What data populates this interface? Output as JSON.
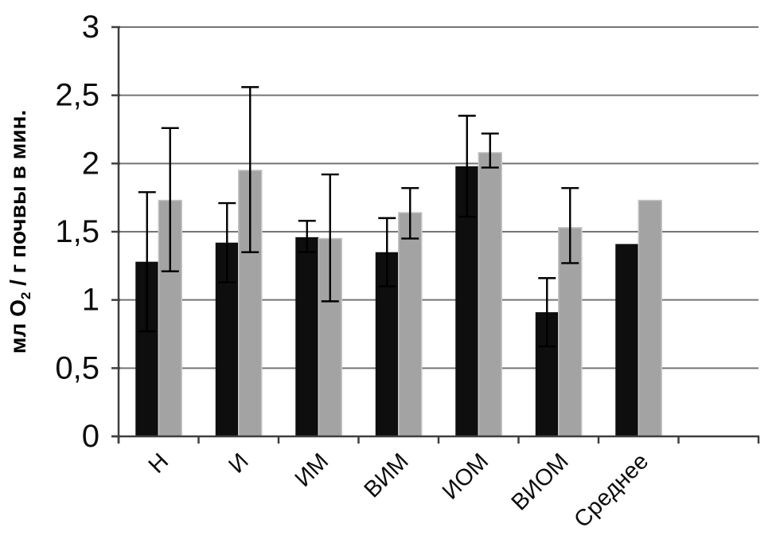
{
  "chart_data": {
    "type": "bar",
    "title": "",
    "xlabel": "",
    "ylabel": "мл О2 / г почвы в мин.",
    "ylabel_parts": {
      "prefix": "мл О",
      "subscript": "2",
      "suffix": " / г почвы в мин."
    },
    "categories": [
      "Н",
      "И",
      "ИМ",
      "ВИМ",
      "ИОМ",
      "ВИОМ",
      "Среднее"
    ],
    "series": [
      {
        "name": "dark",
        "color": "#0e0e0e",
        "values": [
          1.28,
          1.42,
          1.46,
          1.35,
          1.98,
          0.91,
          1.41
        ],
        "error_low": [
          0.77,
          1.13,
          1.35,
          1.1,
          1.61,
          0.66,
          null
        ],
        "error_high": [
          1.79,
          1.71,
          1.58,
          1.6,
          2.35,
          1.16,
          null
        ]
      },
      {
        "name": "gray",
        "color": "#a3a3a3",
        "values": [
          1.73,
          1.95,
          1.45,
          1.64,
          2.08,
          1.53,
          1.73
        ],
        "error_low": [
          1.21,
          1.35,
          0.99,
          1.45,
          1.97,
          1.27,
          null
        ],
        "error_high": [
          2.26,
          2.56,
          1.92,
          1.82,
          2.22,
          1.82,
          null
        ]
      }
    ],
    "ylim": [
      0,
      3
    ],
    "ytick_step": 0.5,
    "ytick_labels": [
      "0",
      "0,5",
      "1",
      "1,5",
      "2",
      "2,5",
      "3"
    ],
    "decimal_separator": ",",
    "grid": true,
    "legend": "none",
    "x_labels_rotation_deg": -45,
    "trailing_empty_slot": true,
    "colors": {
      "background": "#ffffff",
      "gridline": "#757575",
      "axis": "#3f3f3f",
      "text": "#0d0d0d",
      "error_bar": "#000000",
      "gray_bar_edge": "#c6c6c6"
    }
  }
}
